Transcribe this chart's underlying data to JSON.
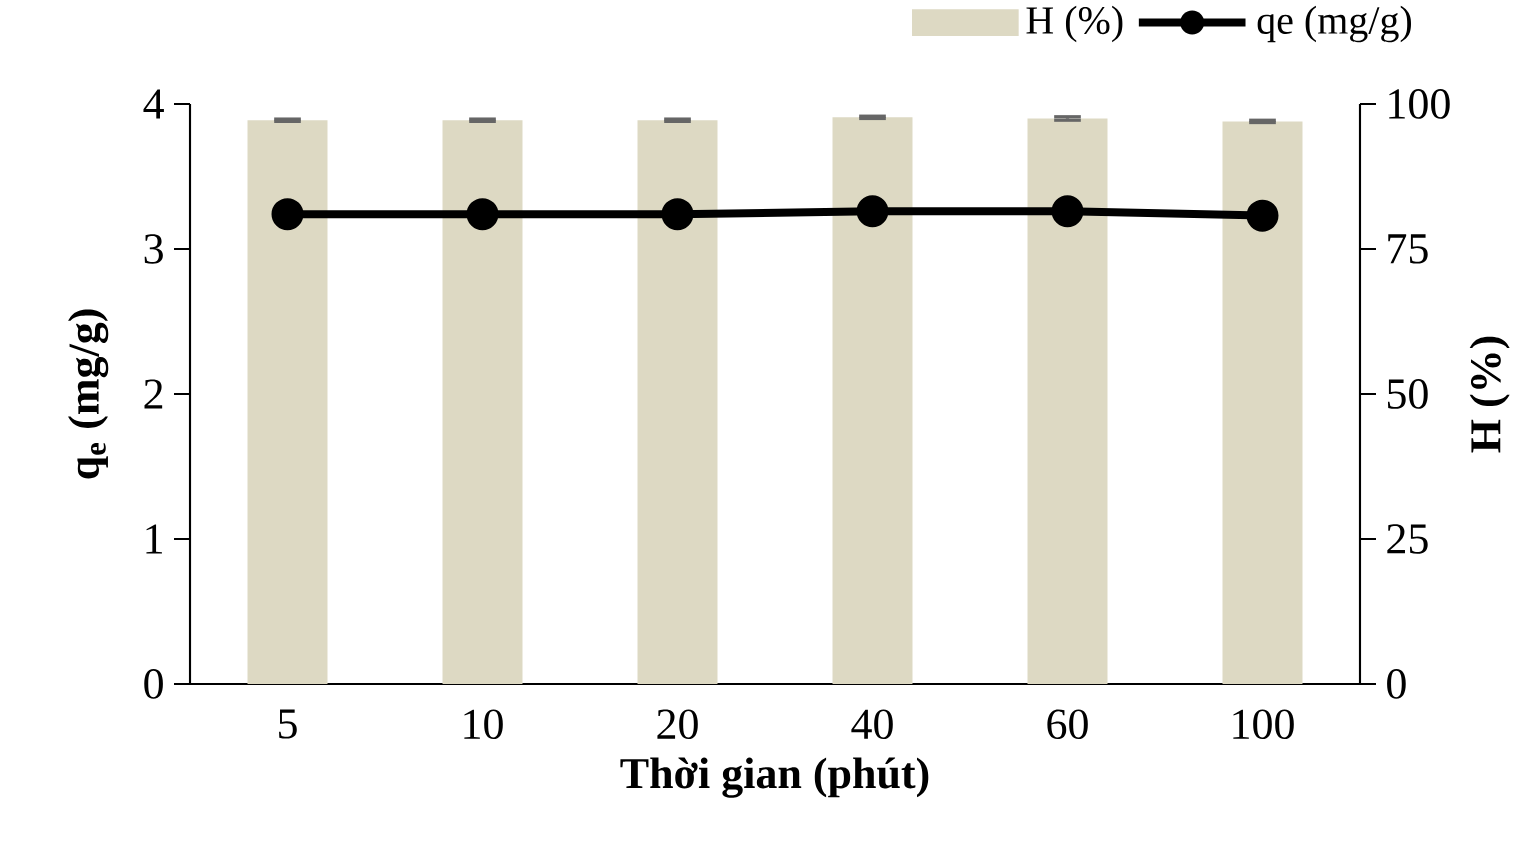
{
  "chart_data": {
    "type": "bar",
    "xlabel": "Thời gian (phút)",
    "ylabel": "q$_{e}$ (mg/g)",
    "y2label": "H (%)",
    "categories": [
      "5",
      "10",
      "20",
      "40",
      "60",
      "100"
    ],
    "series": [
      {
        "name": "H (%)",
        "axis": "y2",
        "color": "#ddd9c3",
        "values": [
          97.2,
          97.2,
          97.2,
          97.7,
          97.5,
          97.0
        ],
        "errors": [
          0.2,
          0.2,
          0.2,
          0.2,
          0.3,
          0.2
        ]
      },
      {
        "name": "qe (mg/g)",
        "type": "line",
        "color": "#000000",
        "marker": "circle",
        "line_style": "solid",
        "values": [
          3.24,
          3.24,
          3.24,
          3.26,
          3.26,
          3.23
        ]
      }
    ],
    "ylim": [
      0,
      4
    ],
    "yticks": [
      0,
      1,
      2,
      3,
      4
    ],
    "y2lim": [
      0,
      100
    ],
    "y2ticks": [
      0,
      25,
      50,
      75,
      100
    ],
    "grid": false,
    "legend": "top right"
  }
}
